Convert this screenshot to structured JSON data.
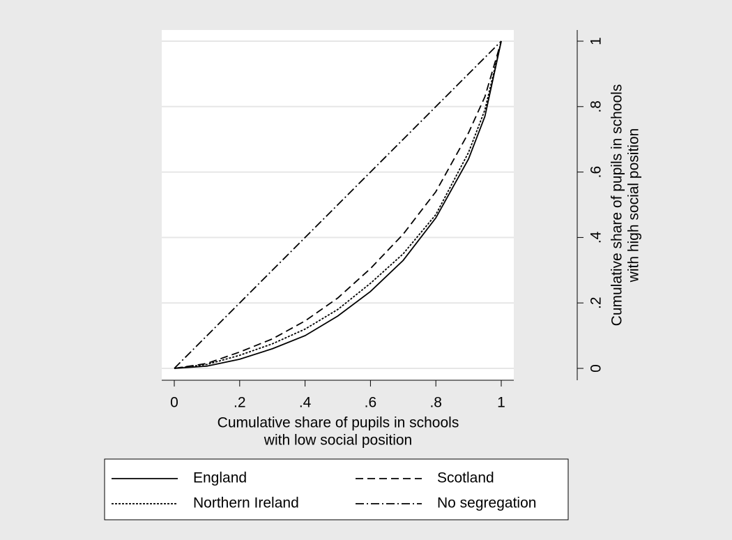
{
  "chart_data": {
    "type": "line",
    "x_label": [
      "Cumulative share of pupils in schools",
      "with low social position"
    ],
    "y_label": [
      "Cumulative share of pupils in schools",
      "with high social position"
    ],
    "x": [
      0,
      0.1,
      0.2,
      0.3,
      0.4,
      0.5,
      0.6,
      0.7,
      0.8,
      0.9,
      0.95,
      1
    ],
    "series": [
      {
        "name": "England",
        "color": "#000000",
        "dash": "none",
        "values": [
          0,
          0.007,
          0.028,
          0.06,
          0.1,
          0.16,
          0.235,
          0.33,
          0.46,
          0.64,
          0.77,
          1
        ]
      },
      {
        "name": "Scotland",
        "color": "#000000",
        "dash": "11 6",
        "values": [
          0,
          0.015,
          0.05,
          0.09,
          0.145,
          0.215,
          0.305,
          0.41,
          0.54,
          0.72,
          0.83,
          1
        ]
      },
      {
        "name": "Northern Ireland",
        "color": "#000000",
        "dash": "3 2",
        "values": [
          0,
          0.012,
          0.04,
          0.075,
          0.12,
          0.18,
          0.26,
          0.35,
          0.47,
          0.66,
          0.79,
          1
        ]
      },
      {
        "name": "No segregation",
        "color": "#000000",
        "dash": "12 4 2 4",
        "values": [
          0,
          0.1,
          0.2,
          0.3,
          0.4,
          0.5,
          0.6,
          0.7,
          0.8,
          0.9,
          0.95,
          1
        ]
      }
    ],
    "xlim": [
      0,
      1
    ],
    "ylim": [
      0,
      1
    ],
    "xticks": [
      0,
      {
        "value": 0.2,
        "label": ".2"
      },
      {
        "value": 0.4,
        "label": ".4"
      },
      {
        "value": 0.6,
        "label": ".6"
      },
      {
        "value": 0.8,
        "label": ".8"
      },
      1
    ],
    "yticks": [
      0,
      {
        "value": 0.2,
        "label": ".2"
      },
      {
        "value": 0.4,
        "label": ".4"
      },
      {
        "value": 0.6,
        "label": ".6"
      },
      {
        "value": 0.8,
        "label": ".8"
      },
      1
    ],
    "grid": true,
    "y_axis_side": "right",
    "legend_position": "bottom"
  }
}
